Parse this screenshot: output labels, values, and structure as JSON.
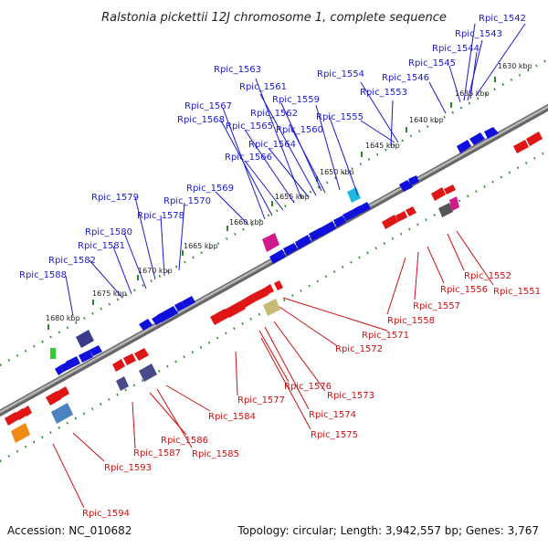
{
  "title": "Ralstonia pickettii 12J chromosome 1, complete sequence",
  "footer": {
    "accession": "Accession: NC_010682",
    "topology": "Topology: circular; Length: 3,942,557 bp; Genes: 3,767"
  },
  "colors": {
    "top_labels": "#1a1acc",
    "bottom_labels": "#cc1111",
    "backbone": "#8a8a8a",
    "tick_marks": "#2a8a2a",
    "forward_genes": "#1010dd",
    "reverse_genes": "#e01515",
    "pseudo_gene": "#c8b876",
    "rna_gene": "#d01a8a"
  },
  "scale_labels": [
    "1630 kbp",
    "1635 kbp",
    "1640 kbp",
    "1645 kbp",
    "1650 kbp",
    "1655 kbp",
    "1660 kbp",
    "1665 kbp",
    "1670 kbp",
    "1675 kbp",
    "1680 kbp"
  ],
  "top_genes": [
    "Rpic_1542",
    "Rpic_1543",
    "Rpic_1544",
    "Rpic_1545",
    "Rpic_1546",
    "Rpic_1553",
    "Rpic_1554",
    "Rpic_1555",
    "Rpic_1559",
    "Rpic_1560",
    "Rpic_1561",
    "Rpic_1562",
    "Rpic_1563",
    "Rpic_1564",
    "Rpic_1565",
    "Rpic_1566",
    "Rpic_1567",
    "Rpic_1568",
    "Rpic_1569",
    "Rpic_1570",
    "Rpic_1578",
    "Rpic_1579",
    "Rpic_1580",
    "Rpic_1581",
    "Rpic_1582",
    "Rpic_1588"
  ],
  "bottom_genes": [
    "Rpic_1551",
    "Rpic_1552",
    "Rpic_1556",
    "Rpic_1557",
    "Rpic_1558",
    "Rpic_1571",
    "Rpic_1572",
    "Rpic_1573",
    "Rpic_1574",
    "Rpic_1575",
    "Rpic_1576",
    "Rpic_1577",
    "Rpic_1584",
    "Rpic_1585",
    "Rpic_1586",
    "Rpic_1587",
    "Rpic_1593",
    "Rpic_1594"
  ]
}
